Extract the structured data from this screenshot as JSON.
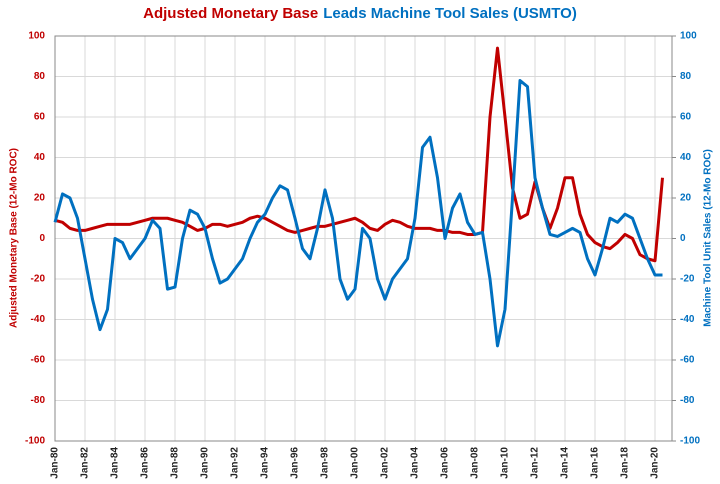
{
  "chart_data": {
    "type": "line",
    "title": [
      "Adjusted Monetary Base",
      "Leads Machine Tool Sales (USMTO)"
    ],
    "y_label": "Adjusted Monetary Base (12-Mo ROC)",
    "y2_label": "Machine Tool Unit Sales (12-Mo ROC)",
    "x": [
      "Jan-80",
      "Jul-80",
      "Jan-81",
      "Jul-81",
      "Jan-82",
      "Jul-82",
      "Jan-83",
      "Jul-83",
      "Jan-84",
      "Jul-84",
      "Jan-85",
      "Jul-85",
      "Jan-86",
      "Jul-86",
      "Jan-87",
      "Jul-87",
      "Jan-88",
      "Jul-88",
      "Jan-89",
      "Jul-89",
      "Jan-90",
      "Jul-90",
      "Jan-91",
      "Jul-91",
      "Jan-92",
      "Jul-92",
      "Jan-93",
      "Jul-93",
      "Jan-94",
      "Jul-94",
      "Jan-95",
      "Jul-95",
      "Jan-96",
      "Jul-96",
      "Jan-97",
      "Jul-97",
      "Jan-98",
      "Jul-98",
      "Jan-99",
      "Jul-99",
      "Jan-00",
      "Jul-00",
      "Jan-01",
      "Jul-01",
      "Jan-02",
      "Jul-02",
      "Jan-03",
      "Jul-03",
      "Jan-04",
      "Jul-04",
      "Jan-05",
      "Jul-05",
      "Jan-06",
      "Jul-06",
      "Jan-07",
      "Jul-07",
      "Jan-08",
      "Jul-08",
      "Jan-09",
      "Jul-09",
      "Jan-10",
      "Jul-10",
      "Jan-11",
      "Jul-11",
      "Jan-12",
      "Jul-12",
      "Jan-13",
      "Jul-13",
      "Jan-14",
      "Jul-14",
      "Jan-15",
      "Jul-15",
      "Jan-16",
      "Jul-16",
      "Jan-17",
      "Jul-17",
      "Jan-18",
      "Jul-18",
      "Jan-19",
      "Jul-19",
      "Jan-20",
      "Jul-20"
    ],
    "series": [
      {
        "name": "Adjusted Monetary Base",
        "color": "#c00000",
        "axis": "y",
        "values": [
          9,
          8,
          5,
          4,
          4,
          5,
          6,
          7,
          7,
          7,
          7,
          8,
          9,
          10,
          10,
          10,
          9,
          8,
          6,
          4,
          5,
          7,
          7,
          6,
          7,
          8,
          10,
          11,
          10,
          8,
          6,
          4,
          3,
          4,
          5,
          6,
          6,
          7,
          8,
          9,
          10,
          8,
          5,
          4,
          7,
          9,
          8,
          6,
          5,
          5,
          5,
          4,
          4,
          3,
          3,
          2,
          2,
          3,
          60,
          94,
          60,
          25,
          10,
          12,
          28,
          15,
          5,
          15,
          30,
          30,
          12,
          2,
          -2,
          -4,
          -5,
          -2,
          2,
          0,
          -8,
          -10,
          -11,
          30
        ]
      },
      {
        "name": "Leads Machine Tool Sales (USMTO)",
        "color": "#0070c0",
        "axis": "y2",
        "values": [
          8,
          22,
          20,
          10,
          -10,
          -30,
          -45,
          -35,
          0,
          -2,
          -10,
          -5,
          0,
          9,
          5,
          -25,
          -24,
          0,
          14,
          12,
          5,
          -10,
          -22,
          -20,
          -15,
          -10,
          0,
          8,
          12,
          20,
          26,
          24,
          10,
          -5,
          -10,
          5,
          24,
          10,
          -20,
          -30,
          -25,
          5,
          0,
          -20,
          -30,
          -20,
          -15,
          -10,
          10,
          45,
          50,
          30,
          0,
          15,
          22,
          8,
          2,
          3,
          -20,
          -53,
          -35,
          20,
          78,
          75,
          30,
          15,
          2,
          1,
          3,
          5,
          3,
          -10,
          -18,
          -5,
          10,
          8,
          12,
          10,
          0,
          -10,
          -18,
          -18
        ]
      }
    ],
    "ylim": [
      -100,
      100
    ],
    "yticks": [
      -100,
      -80,
      -60,
      -40,
      -20,
      0,
      20,
      40,
      60,
      80,
      100
    ],
    "y2lim": [
      -100,
      100
    ],
    "y2ticks": [
      -100,
      -80,
      -60,
      -40,
      -20,
      0,
      20,
      40,
      60,
      80,
      100
    ],
    "grid": true
  }
}
